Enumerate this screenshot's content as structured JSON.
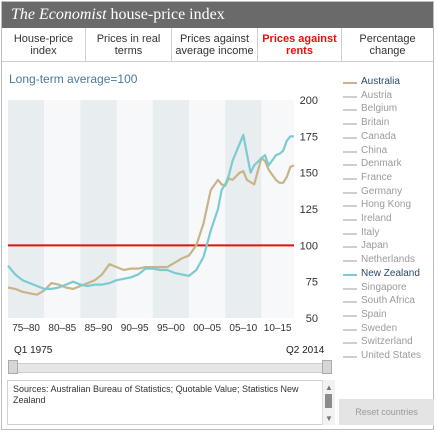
{
  "header": {
    "title_italic": "The Economist",
    "title_rest": " house-price index"
  },
  "tabs": [
    {
      "label": "House-price index",
      "active": false
    },
    {
      "label": "Prices in real terms",
      "active": false
    },
    {
      "label": "Prices against average income",
      "active": false
    },
    {
      "label": "Prices against rents",
      "active": true
    },
    {
      "label": "Percentage change",
      "active": false
    }
  ],
  "subtitle": "Long-term average=100",
  "legend": [
    {
      "label": "Australia",
      "selected": true,
      "color": "#c9b489"
    },
    {
      "label": "Austria",
      "selected": false
    },
    {
      "label": "Belgium",
      "selected": false
    },
    {
      "label": "Britain",
      "selected": false
    },
    {
      "label": "Canada",
      "selected": false
    },
    {
      "label": "China",
      "selected": false
    },
    {
      "label": "Denmark",
      "selected": false
    },
    {
      "label": "France",
      "selected": false
    },
    {
      "label": "Germany",
      "selected": false
    },
    {
      "label": "Hong Kong",
      "selected": false
    },
    {
      "label": "Ireland",
      "selected": false
    },
    {
      "label": "Italy",
      "selected": false
    },
    {
      "label": "Japan",
      "selected": false
    },
    {
      "label": "Netherlands",
      "selected": false
    },
    {
      "label": "New Zealand",
      "selected": true,
      "color": "#7ccbd1"
    },
    {
      "label": "Singapore",
      "selected": false
    },
    {
      "label": "South Africa",
      "selected": false
    },
    {
      "label": "Spain",
      "selected": false
    },
    {
      "label": "Sweden",
      "selected": false
    },
    {
      "label": "Switzerland",
      "selected": false
    },
    {
      "label": "United States",
      "selected": false
    }
  ],
  "slider": {
    "start_label": "Q1 1975",
    "end_label": "Q2 2014"
  },
  "sources_text": "Sources: Australian Bureau of Statistics; Quotable Value; Statistics New Zealand",
  "reset_label": "Reset countries",
  "colors": {
    "reference_line": "#e3120b",
    "plot_background": "#e8edf0",
    "active_tab": "#e3120b"
  },
  "chart_data": {
    "type": "line",
    "ylim": [
      50,
      200
    ],
    "y_ticks": [
      50,
      75,
      100,
      125,
      150,
      175,
      200
    ],
    "x_range": [
      1975.0,
      2014.5
    ],
    "x_tick_labels": [
      "75–80",
      "80–85",
      "85–90",
      "90–95",
      "95–00",
      "00–05",
      "05–10",
      "10–15"
    ],
    "reference_line": 100,
    "grid": "vertical bands",
    "series": [
      {
        "name": "Australia",
        "color": "#c9b489",
        "points": [
          [
            1975,
            71
          ],
          [
            1976,
            70
          ],
          [
            1977,
            68
          ],
          [
            1978,
            67
          ],
          [
            1979,
            66
          ],
          [
            1980,
            69
          ],
          [
            1981,
            74
          ],
          [
            1982,
            73
          ],
          [
            1983,
            71
          ],
          [
            1984,
            70
          ],
          [
            1985,
            72
          ],
          [
            1986,
            74
          ],
          [
            1987,
            76
          ],
          [
            1988,
            80
          ],
          [
            1989,
            87
          ],
          [
            1990,
            85
          ],
          [
            1991,
            83
          ],
          [
            1992,
            84
          ],
          [
            1993,
            84
          ],
          [
            1994,
            85
          ],
          [
            1995,
            85
          ],
          [
            1996,
            85
          ],
          [
            1997,
            85
          ],
          [
            1998,
            88
          ],
          [
            1999,
            91
          ],
          [
            2000,
            93
          ],
          [
            2001,
            100
          ],
          [
            2002,
            115
          ],
          [
            2003,
            138
          ],
          [
            2004,
            145
          ],
          [
            2004.5,
            142
          ],
          [
            2005,
            141
          ],
          [
            2005.5,
            146
          ],
          [
            2006,
            145
          ],
          [
            2007,
            150
          ],
          [
            2007.5,
            151
          ],
          [
            2008,
            145
          ],
          [
            2009,
            142
          ],
          [
            2010,
            160
          ],
          [
            2010.5,
            158
          ],
          [
            2011,
            152
          ],
          [
            2012,
            145
          ],
          [
            2012.5,
            143
          ],
          [
            2013,
            143
          ],
          [
            2013.5,
            147
          ],
          [
            2014,
            154
          ],
          [
            2014.5,
            155
          ]
        ]
      },
      {
        "name": "New Zealand",
        "color": "#7ccbd1",
        "points": [
          [
            1975,
            86
          ],
          [
            1976,
            80
          ],
          [
            1977,
            76
          ],
          [
            1978,
            74
          ],
          [
            1979,
            72
          ],
          [
            1980,
            70
          ],
          [
            1981,
            70
          ],
          [
            1982,
            71
          ],
          [
            1983,
            73
          ],
          [
            1984,
            75
          ],
          [
            1985,
            73
          ],
          [
            1986,
            72
          ],
          [
            1987,
            73
          ],
          [
            1988,
            73
          ],
          [
            1989,
            74
          ],
          [
            1990,
            76
          ],
          [
            1991,
            77
          ],
          [
            1992,
            78
          ],
          [
            1993,
            80
          ],
          [
            1994,
            84
          ],
          [
            1995,
            84
          ],
          [
            1996,
            83
          ],
          [
            1997,
            83
          ],
          [
            1998,
            81
          ],
          [
            1999,
            80
          ],
          [
            2000,
            79
          ],
          [
            2001,
            83
          ],
          [
            2002,
            92
          ],
          [
            2003,
            110
          ],
          [
            2004,
            125
          ],
          [
            2004.5,
            138
          ],
          [
            2005,
            142
          ],
          [
            2005.5,
            148
          ],
          [
            2006,
            158
          ],
          [
            2007,
            170
          ],
          [
            2007.5,
            176
          ],
          [
            2008,
            163
          ],
          [
            2008.5,
            150
          ],
          [
            2009,
            155
          ],
          [
            2010,
            160
          ],
          [
            2010.5,
            162
          ],
          [
            2011,
            155
          ],
          [
            2012,
            162
          ],
          [
            2012.5,
            163
          ],
          [
            2013,
            165
          ],
          [
            2013.5,
            172
          ],
          [
            2014,
            175
          ],
          [
            2014.5,
            175
          ]
        ]
      }
    ]
  }
}
